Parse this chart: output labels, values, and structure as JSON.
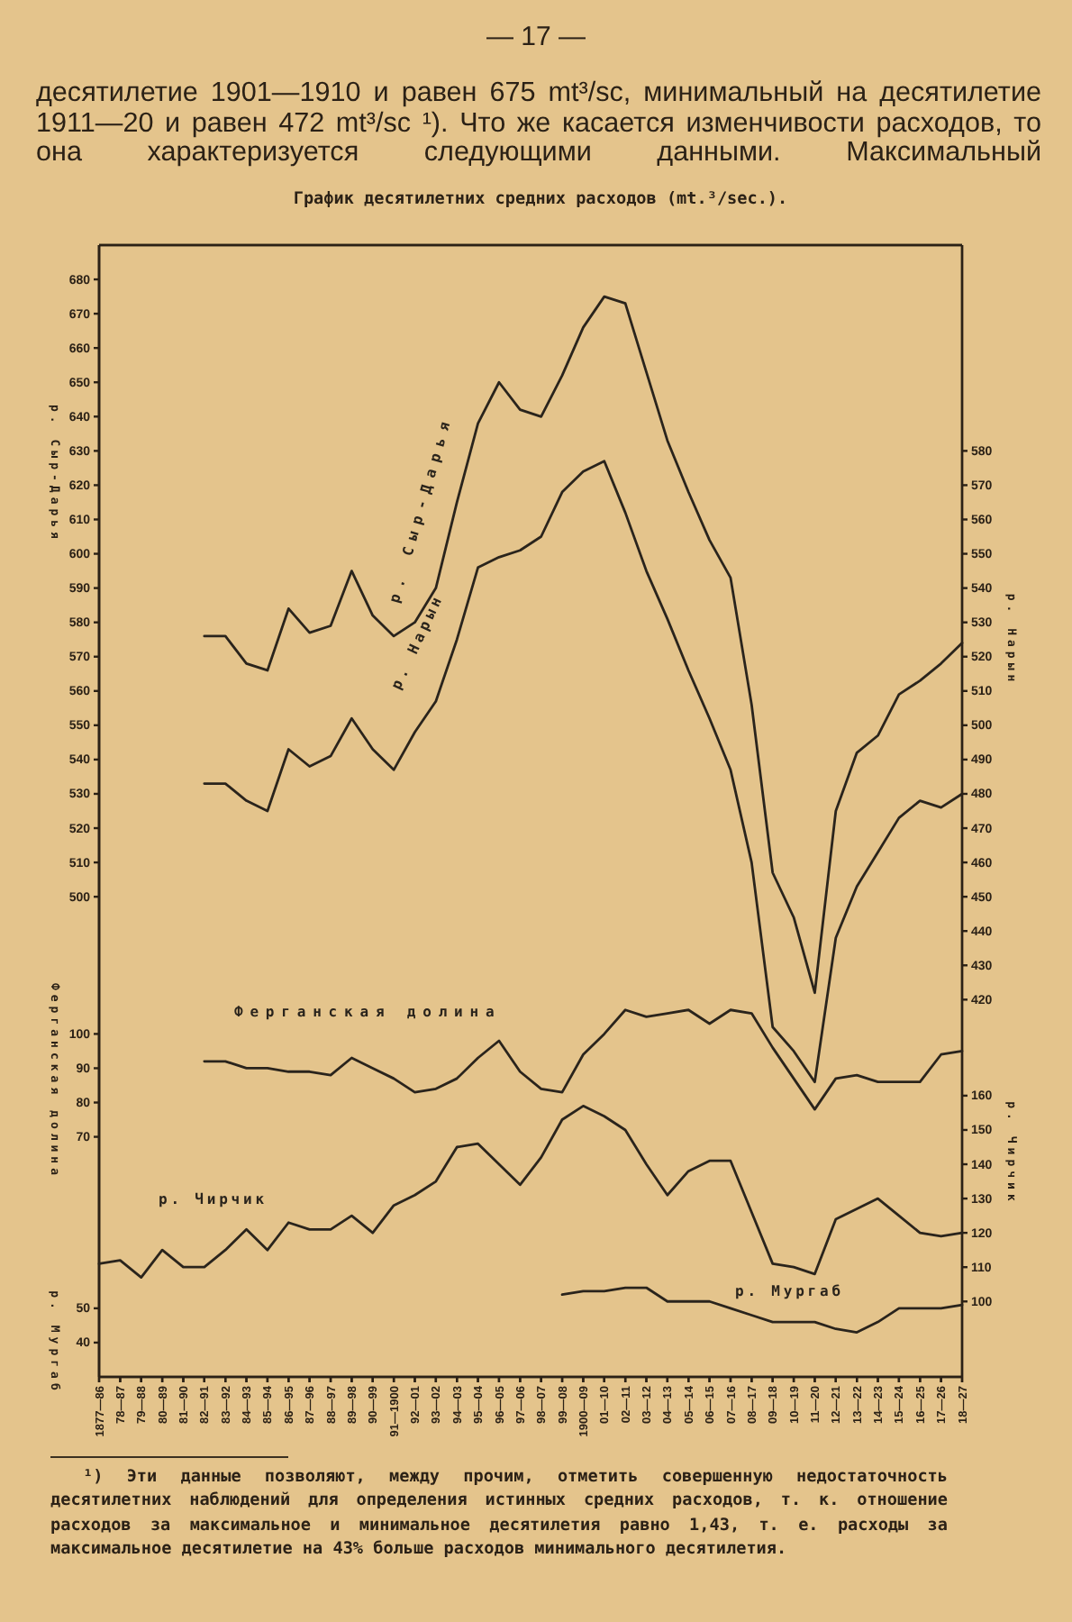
{
  "chart_data": [
    {
      "type": "line",
      "title": "График десятилетних средних расходов (mt.³/sec.).",
      "ylabel": "р. Сыр-Дарья",
      "y2label": "р. Нарын",
      "categories": [
        "1877—86",
        "78—87",
        "79—88",
        "80—89",
        "81—90",
        "82—91",
        "83—92",
        "84—93",
        "85—94",
        "86—95",
        "87—96",
        "88—97",
        "89—98",
        "90—99",
        "91—1900",
        "92—01",
        "93—02",
        "94—03",
        "95—04",
        "96—05",
        "97—06",
        "98—07",
        "99—08",
        "1900—09",
        "01—10",
        "02—11",
        "03—12",
        "04—13",
        "05—14",
        "06—15",
        "07—16",
        "08—17",
        "09—18",
        "10—19",
        "11—20",
        "12—21",
        "13—22",
        "14—23",
        "15—24",
        "16—25",
        "17—26",
        "18—27"
      ],
      "series": [
        {
          "name": "р. Сыр-Дарья",
          "color": "#2a241c",
          "values": [
            null,
            null,
            null,
            null,
            null,
            576,
            576,
            568,
            566,
            584,
            577,
            579,
            595,
            582,
            576,
            580,
            590,
            615,
            638,
            650,
            642,
            640,
            652,
            666,
            675,
            673,
            653,
            633,
            618,
            604,
            593,
            556,
            507,
            494,
            472,
            525,
            542,
            547,
            559,
            563,
            568,
            574
          ]
        },
        {
          "name": "р. Нарын",
          "color": "#2a241c",
          "axis": "y2",
          "values": [
            null,
            null,
            null,
            null,
            null,
            483,
            483,
            478,
            475,
            493,
            488,
            491,
            502,
            493,
            487,
            498,
            507,
            525,
            546,
            549,
            551,
            555,
            568,
            574,
            577,
            562,
            545,
            531,
            516,
            502,
            487,
            460,
            412,
            405,
            396,
            438,
            453,
            463,
            473,
            478,
            476,
            480
          ]
        }
      ],
      "ylim": [
        360,
        690
      ],
      "yticks": [
        500,
        510,
        520,
        530,
        540,
        550,
        560,
        570,
        580,
        590,
        600,
        610,
        620,
        630,
        640,
        650,
        660,
        670,
        680
      ],
      "y2lim": [
        310,
        640
      ],
      "y2ticks": [
        420,
        430,
        440,
        450,
        460,
        470,
        480,
        490,
        500,
        510,
        520,
        530,
        540,
        550,
        560,
        570,
        580
      ],
      "line_style": "solid",
      "annotations": [
        "— 17 —",
        "десятилетие 1901—1910 и равен 675 mt³/sc, минимальный на десятилетие 1911—20 и равен 472 mt³/sc ¹). Что же касается изменчивости расходов, то она характеризуется следующими данными. Максимальный"
      ]
    },
    {
      "type": "line",
      "ylabel": "Ферганская долина",
      "y2label": "р. Чирчик",
      "y3label": "р. Мургаб",
      "categories": [
        null,
        null,
        null,
        null,
        null,
        null,
        null,
        null,
        null,
        null,
        null,
        null,
        null,
        null,
        null,
        null,
        null,
        null,
        null,
        null,
        null,
        null,
        null,
        null,
        null,
        null,
        null,
        null,
        null,
        null,
        null,
        null,
        null,
        null,
        null,
        null,
        null,
        null,
        null,
        null,
        null,
        null
      ],
      "series": [
        {
          "name": "Ферганская долина",
          "color": "#2a241c",
          "values": [
            null,
            null,
            null,
            null,
            null,
            92,
            92,
            90,
            90,
            89,
            89,
            88,
            93,
            90,
            87,
            83,
            84,
            87,
            93,
            98,
            89,
            84,
            83,
            94,
            100,
            107,
            105,
            106,
            107,
            103,
            107,
            106,
            96,
            87,
            78,
            87,
            88,
            86,
            86,
            86,
            94,
            95
          ]
        },
        {
          "name": "р. Чирчик",
          "color": "#2a241c",
          "axis": "y2",
          "values": [
            111,
            112,
            107,
            115,
            110,
            110,
            115,
            121,
            115,
            123,
            121,
            121,
            125,
            120,
            128,
            131,
            135,
            145,
            146,
            140,
            134,
            142,
            153,
            157,
            154,
            150,
            140,
            131,
            138,
            141,
            141,
            126,
            111,
            110,
            108,
            124,
            127,
            130,
            125,
            120,
            119,
            120
          ]
        },
        {
          "name": "р. Мургаб",
          "color": "#2a241c",
          "axis": "y3",
          "values": [
            null,
            null,
            null,
            null,
            null,
            null,
            null,
            null,
            null,
            null,
            null,
            null,
            null,
            null,
            null,
            null,
            null,
            null,
            null,
            null,
            null,
            null,
            54,
            55,
            55,
            56,
            56,
            52,
            52,
            52,
            50,
            48,
            46,
            46,
            46,
            44,
            43,
            46,
            50,
            50,
            50,
            51
          ]
        }
      ],
      "ylim": [
        0,
        330
      ],
      "yticks": [
        70,
        80,
        90,
        100
      ],
      "y2lim": [
        78,
        408
      ],
      "y2ticks": [
        100,
        110,
        120,
        130,
        140,
        150,
        160
      ],
      "y3lim": [
        30,
        360
      ],
      "y3ticks": [
        40,
        50
      ],
      "line_style": "solid",
      "annotations": [
        "¹) Эти данные позволяют, между прочим, отметить совершенную недостаточность десятилетних наблюдений для определения истинных средних расходов, т. к. отношение расходов за максимальное и минимальное десятилетия равно 1,43, т. е. расходы за максимальное десятилетие на 43% больше расходов минимального десятилетия."
      ]
    }
  ]
}
